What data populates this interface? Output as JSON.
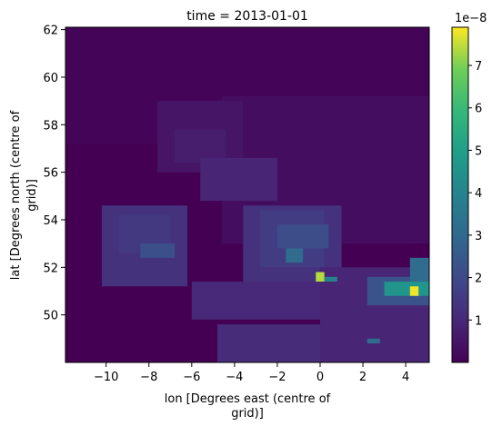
{
  "chart_data": {
    "type": "heatmap",
    "title": "time = 2013-01-01",
    "xlabel": [
      "lon [Degrees east (centre of",
      "grid)]"
    ],
    "ylabel": [
      "lat [Degrees north (centre of",
      "grid)]"
    ],
    "xlim": [
      -11.9,
      5.1
    ],
    "ylim": [
      48.0,
      62.1
    ],
    "xticks": [
      -10,
      -8,
      -6,
      -4,
      -2,
      0,
      2,
      4
    ],
    "xtick_labels": [
      "−10",
      "−8",
      "−6",
      "−4",
      "−2",
      "0",
      "2",
      "4"
    ],
    "yticks": [
      50,
      52,
      54,
      56,
      58,
      60,
      62
    ],
    "ytick_labels": [
      "50",
      "52",
      "54",
      "56",
      "58",
      "60",
      "62"
    ],
    "grid": false,
    "colorbar": {
      "label": "",
      "offset_text": "1e−8",
      "range": [
        0,
        7.9
      ],
      "colormap": "viridis",
      "ticks": [
        1,
        2,
        3,
        4,
        5,
        6,
        7
      ],
      "tick_labels": [
        "1",
        "2",
        "3",
        "4",
        "5",
        "6",
        "7"
      ]
    },
    "cell_size_deg": [
      0.4,
      0.2
    ],
    "background_value": 0.0,
    "regions": [
      {
        "lon": [
          -11.9,
          5.1
        ],
        "lat": [
          57.2,
          62.1
        ],
        "value": 0.1
      },
      {
        "lon": [
          -4.6,
          5.1
        ],
        "lat": [
          53.0,
          59.2
        ],
        "value": 0.3
      },
      {
        "lon": [
          -7.6,
          -3.6
        ],
        "lat": [
          56.0,
          59.0
        ],
        "value": 0.5
      },
      {
        "lon": [
          -6.8,
          -4.4
        ],
        "lat": [
          56.4,
          57.8
        ],
        "value": 0.7
      },
      {
        "lon": [
          -5.6,
          -2.0
        ],
        "lat": [
          54.8,
          56.6
        ],
        "value": 0.9
      },
      {
        "lon": [
          -3.6,
          1.0
        ],
        "lat": [
          50.8,
          54.6
        ],
        "value": 1.3
      },
      {
        "lon": [
          -2.8,
          0.2
        ],
        "lat": [
          52.0,
          54.4
        ],
        "value": 1.6
      },
      {
        "lon": [
          -2.0,
          0.4
        ],
        "lat": [
          52.8,
          53.8
        ],
        "value": 2.1
      },
      {
        "lon": [
          -1.6,
          -0.8
        ],
        "lat": [
          52.2,
          52.8
        ],
        "value": 3.1
      },
      {
        "lon": [
          -10.2,
          -6.2
        ],
        "lat": [
          51.2,
          54.6
        ],
        "value": 1.3
      },
      {
        "lon": [
          -9.4,
          -7.0
        ],
        "lat": [
          52.6,
          54.2
        ],
        "value": 1.5
      },
      {
        "lon": [
          -8.4,
          -6.8
        ],
        "lat": [
          52.4,
          53.0
        ],
        "value": 2.2
      },
      {
        "lon": [
          -6.0,
          0.4
        ],
        "lat": [
          49.8,
          51.4
        ],
        "value": 1.0
      },
      {
        "lon": [
          -4.8,
          0.0
        ],
        "lat": [
          48.0,
          49.6
        ],
        "value": 1.1
      },
      {
        "lon": [
          0.0,
          5.1
        ],
        "lat": [
          48.0,
          52.0
        ],
        "value": 0.9
      },
      {
        "lon": [
          2.2,
          5.1
        ],
        "lat": [
          50.4,
          51.6
        ],
        "value": 2.3
      },
      {
        "lon": [
          3.0,
          5.1
        ],
        "lat": [
          50.8,
          51.4
        ],
        "value": 4.6
      },
      {
        "lon": [
          4.2,
          5.1
        ],
        "lat": [
          51.4,
          52.4
        ],
        "value": 3.1
      },
      {
        "lon": [
          -0.2,
          0.2
        ],
        "lat": [
          51.4,
          51.8
        ],
        "value": 7.4
      },
      {
        "lon": [
          0.2,
          0.8
        ],
        "lat": [
          51.4,
          51.6
        ],
        "value": 3.9
      },
      {
        "lon": [
          4.2,
          4.6
        ],
        "lat": [
          50.8,
          51.2
        ],
        "value": 7.8
      },
      {
        "lon": [
          2.2,
          2.8
        ],
        "lat": [
          48.8,
          49.0
        ],
        "value": 3.1
      }
    ]
  }
}
